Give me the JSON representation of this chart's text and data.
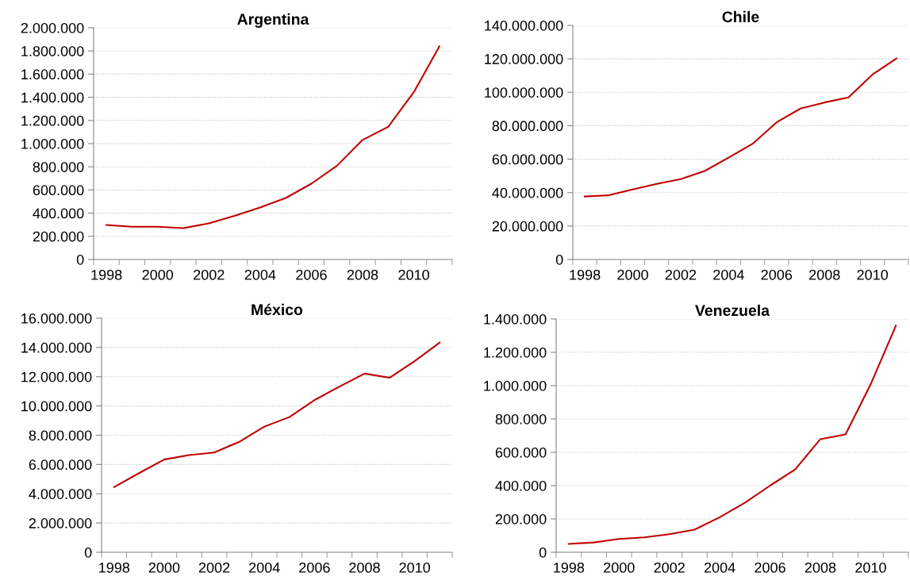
{
  "chart_data": [
    {
      "type": "line",
      "title": "Argentina",
      "categories": [
        "1998",
        null,
        "2000",
        null,
        "2002",
        null,
        "2004",
        null,
        "2006",
        null,
        "2008",
        null,
        "2010",
        null
      ],
      "series": [
        {
          "color": "#c00000",
          "values": [
            298000,
            283000,
            283000,
            271000,
            311000,
            376000,
            449000,
            531000,
            654000,
            809000,
            1032000,
            1145000,
            1444000,
            1840000
          ]
        }
      ],
      "ylim": [
        0,
        2000000
      ],
      "yticks": [
        0,
        {
          "value": 200000,
          "label": "200.000"
        },
        {
          "value": 400000,
          "label": "400.000"
        },
        {
          "value": 600000,
          "label": "600.000"
        },
        {
          "value": 800000,
          "label": "800.000"
        },
        {
          "value": 1000000,
          "label": "1.000.000"
        },
        {
          "value": 1200000,
          "label": "1.200.000"
        },
        {
          "value": 1400000,
          "label": "1.400.000"
        },
        {
          "value": 1600000,
          "label": "1.600.000"
        },
        {
          "value": 1800000,
          "label": "1.800.000"
        },
        {
          "value": 2000000,
          "label": "2.000.000"
        }
      ],
      "grid": "y",
      "legend": false,
      "marker": "none",
      "line_style": "solid"
    },
    {
      "type": "line",
      "title": "Chile",
      "categories": [
        "1998",
        null,
        "2000",
        null,
        "2002",
        null,
        "2004",
        null,
        "2006",
        null,
        "2008",
        null,
        "2010",
        null
      ],
      "series": [
        {
          "color": "#c00000",
          "values": [
            37700000,
            38400000,
            41900000,
            45200000,
            48100000,
            52900000,
            60900000,
            69200000,
            82000000,
            90300000,
            93900000,
            96900000,
            110600000,
            120200000
          ]
        }
      ],
      "ylim": [
        0,
        140000000
      ],
      "yticks": [
        0,
        {
          "value": 20000000,
          "label": "20.000.000"
        },
        {
          "value": 40000000,
          "label": "40.000.000"
        },
        {
          "value": 60000000,
          "label": "60.000.000"
        },
        {
          "value": 80000000,
          "label": "80.000.000"
        },
        {
          "value": 100000000,
          "label": "100.000.000"
        },
        {
          "value": 120000000,
          "label": "120.000.000"
        },
        {
          "value": 140000000,
          "label": "140.000.000"
        }
      ],
      "grid": "y",
      "legend": false,
      "marker": "none",
      "line_style": "solid"
    },
    {
      "type": "line",
      "title": "México",
      "categories": [
        "1998",
        null,
        "2000",
        null,
        "2002",
        null,
        "2004",
        null,
        "2006",
        null,
        "2008",
        null,
        "2010",
        null
      ],
      "series": [
        {
          "color": "#c00000",
          "values": [
            4450000,
            5410000,
            6340000,
            6640000,
            6820000,
            7550000,
            8590000,
            9240000,
            10400000,
            11330000,
            12210000,
            11930000,
            13060000,
            14330000
          ]
        }
      ],
      "ylim": [
        0,
        16000000
      ],
      "yticks": [
        0,
        {
          "value": 2000000,
          "label": "2.000.000"
        },
        {
          "value": 4000000,
          "label": "4.000.000"
        },
        {
          "value": 6000000,
          "label": "6.000.000"
        },
        {
          "value": 8000000,
          "label": "8.000.000"
        },
        {
          "value": 10000000,
          "label": "10.000.000"
        },
        {
          "value": 12000000,
          "label": "12.000.000"
        },
        {
          "value": 14000000,
          "label": "14.000.000"
        },
        {
          "value": 16000000,
          "label": "16.000.000"
        }
      ],
      "grid": "y",
      "legend": false,
      "marker": "none",
      "line_style": "solid"
    },
    {
      "type": "line",
      "title": "Venezuela",
      "categories": [
        "1998",
        null,
        "2000",
        null,
        "2002",
        null,
        "2004",
        null,
        "2006",
        null,
        "2008",
        null,
        "2010",
        null
      ],
      "series": [
        {
          "color": "#c00000",
          "values": [
            50000,
            59000,
            80000,
            89000,
            108000,
            136000,
            210000,
            297000,
            400000,
            497000,
            679000,
            707000,
            1008000,
            1359000
          ]
        }
      ],
      "ylim": [
        0,
        1400000
      ],
      "yticks": [
        0,
        {
          "value": 200000,
          "label": "200.000"
        },
        {
          "value": 400000,
          "label": "400.000"
        },
        {
          "value": 600000,
          "label": "600.000"
        },
        {
          "value": 800000,
          "label": "800.000"
        },
        {
          "value": 1000000,
          "label": "1.000.000"
        },
        {
          "value": 1200000,
          "label": "1.200.000"
        },
        {
          "value": 1400000,
          "label": "1.400.000"
        }
      ],
      "grid": "y",
      "legend": false,
      "marker": "none",
      "line_style": "solid"
    }
  ]
}
